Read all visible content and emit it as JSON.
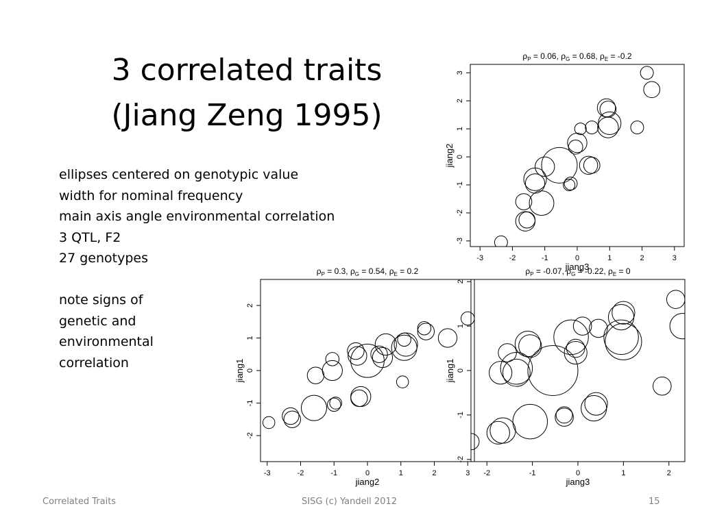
{
  "slide": {
    "title_line1": "3 correlated traits",
    "title_line2": "(Jiang Zeng 1995)",
    "bullets": [
      "ellipses centered on genotypic value",
      "width for nominal frequency",
      "main axis angle environmental correlation",
      "3 QTL, F2",
      "27 genotypes",
      "",
      "note signs of",
      "genetic and",
      "environmental",
      "correlation"
    ],
    "footer_left": "Correlated Traits",
    "footer_center": "SISG (c) Yandell 2012",
    "footer_right": "15"
  },
  "chart_data": [
    {
      "type": "scatter",
      "xlabel": "jiang3",
      "ylabel": "jiang2",
      "title_parts": {
        "p": "0.06",
        "g": "0.68",
        "e": "-0.2"
      },
      "xlim": [
        -3.3,
        3.3
      ],
      "ylim": [
        -3.2,
        3.3
      ],
      "xticks": [
        "-3",
        "-2",
        "-1",
        "0",
        "1",
        "2",
        "3"
      ],
      "yticks": [
        "-3",
        "-2",
        "-1",
        "0",
        "1",
        "2",
        "3"
      ],
      "points": [
        [
          2.15,
          3.0,
          0.2
        ],
        [
          2.3,
          2.4,
          0.25
        ],
        [
          0.9,
          1.75,
          0.28
        ],
        [
          0.95,
          1.7,
          0.25
        ],
        [
          1.0,
          1.2,
          0.35
        ],
        [
          0.95,
          1.05,
          0.32
        ],
        [
          1.85,
          1.05,
          0.2
        ],
        [
          0.45,
          1.05,
          0.2
        ],
        [
          0.1,
          1.0,
          0.18
        ],
        [
          0.0,
          0.5,
          0.3
        ],
        [
          -0.05,
          0.35,
          0.22
        ],
        [
          -0.55,
          -0.3,
          0.55
        ],
        [
          0.35,
          -0.3,
          0.28
        ],
        [
          0.45,
          -0.3,
          0.25
        ],
        [
          -1.0,
          -0.35,
          0.3
        ],
        [
          -1.3,
          -0.8,
          0.35
        ],
        [
          -1.3,
          -0.95,
          0.3
        ],
        [
          -0.2,
          -0.95,
          0.2
        ],
        [
          -0.25,
          -1.0,
          0.18
        ],
        [
          -1.65,
          -1.6,
          0.25
        ],
        [
          -1.1,
          -1.65,
          0.38
        ],
        [
          -1.55,
          -2.25,
          0.25
        ],
        [
          -1.6,
          -2.3,
          0.3
        ],
        [
          -2.35,
          -3.05,
          0.2
        ]
      ]
    },
    {
      "type": "scatter",
      "xlabel": "jiang2",
      "ylabel": "jiang1",
      "title_parts": {
        "p": "0.3",
        "g": "0.54",
        "e": "0.2"
      },
      "xlim": [
        -3.2,
        3.2
      ],
      "ylim": [
        -2.8,
        2.8
      ],
      "xticks": [
        "-3",
        "-2",
        "-1",
        "0",
        "1",
        "2",
        "3"
      ],
      "yticks": [
        "-2",
        "-1",
        "0",
        "1",
        "2"
      ],
      "points": [
        [
          -2.95,
          -1.6,
          0.18
        ],
        [
          -2.3,
          -1.4,
          0.25
        ],
        [
          -2.25,
          -1.5,
          0.25
        ],
        [
          -1.6,
          -1.15,
          0.38
        ],
        [
          -1.0,
          -1.05,
          0.2
        ],
        [
          -0.95,
          -1.0,
          0.18
        ],
        [
          -1.55,
          -0.15,
          0.25
        ],
        [
          -1.05,
          0.0,
          0.3
        ],
        [
          -1.05,
          0.35,
          0.2
        ],
        [
          -0.2,
          -0.8,
          0.3
        ],
        [
          -0.25,
          -0.85,
          0.25
        ],
        [
          -0.35,
          0.6,
          0.25
        ],
        [
          -0.3,
          0.45,
          0.28
        ],
        [
          0.0,
          0.3,
          0.5
        ],
        [
          0.35,
          0.5,
          0.25
        ],
        [
          0.55,
          0.8,
          0.32
        ],
        [
          0.45,
          0.4,
          0.3
        ],
        [
          1.1,
          0.7,
          0.38
        ],
        [
          1.15,
          0.8,
          0.35
        ],
        [
          1.1,
          0.95,
          0.2
        ],
        [
          1.75,
          1.2,
          0.25
        ],
        [
          1.7,
          1.3,
          0.2
        ],
        [
          1.05,
          -0.35,
          0.18
        ],
        [
          2.4,
          1.0,
          0.28
        ],
        [
          3.0,
          1.6,
          0.2
        ]
      ]
    },
    {
      "type": "scatter",
      "xlabel": "jiang3",
      "ylabel": "jiang1",
      "title_parts": {
        "p": "-0.07",
        "g": "-0.22",
        "e": "0"
      },
      "xlim": [
        -2.35,
        2.35
      ],
      "ylim": [
        -2.05,
        2.05
      ],
      "xticks": [
        "-2",
        "-1",
        "0",
        "1",
        "2"
      ],
      "yticks": [
        "-2",
        "-1",
        "0",
        "1",
        "2"
      ],
      "points": [
        [
          -2.35,
          -1.6,
          0.18
        ],
        [
          -1.65,
          -1.35,
          0.28
        ],
        [
          -1.75,
          -1.4,
          0.25
        ],
        [
          -1.05,
          -1.15,
          0.38
        ],
        [
          -0.3,
          -1.05,
          0.2
        ],
        [
          -0.3,
          -1.0,
          0.18
        ],
        [
          0.35,
          -0.85,
          0.28
        ],
        [
          0.4,
          -0.75,
          0.25
        ],
        [
          -1.7,
          -0.05,
          0.25
        ],
        [
          -1.35,
          0.05,
          0.35
        ],
        [
          -1.35,
          -0.05,
          0.3
        ],
        [
          -1.55,
          0.4,
          0.2
        ],
        [
          -1.05,
          0.55,
          0.25
        ],
        [
          -1.1,
          0.6,
          0.28
        ],
        [
          -0.55,
          0.0,
          0.55
        ],
        [
          -0.15,
          0.75,
          0.38
        ],
        [
          -0.05,
          0.4,
          0.25
        ],
        [
          -0.05,
          0.5,
          0.2
        ],
        [
          0.1,
          1.0,
          0.2
        ],
        [
          0.45,
          0.95,
          0.2
        ],
        [
          1.0,
          0.65,
          0.4
        ],
        [
          0.95,
          0.75,
          0.38
        ],
        [
          0.95,
          1.2,
          0.28
        ],
        [
          1.0,
          1.3,
          0.25
        ],
        [
          1.85,
          -0.35,
          0.2
        ],
        [
          2.15,
          1.6,
          0.2
        ],
        [
          2.3,
          1.0,
          0.28
        ]
      ]
    }
  ]
}
